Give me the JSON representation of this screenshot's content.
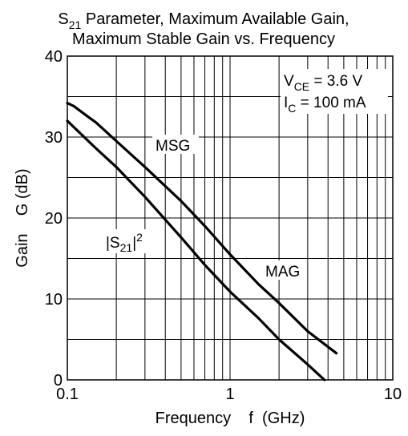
{
  "chart_data": {
    "type": "line",
    "title": {
      "line1_main": "S",
      "line1_sub": "21",
      "line1_rest": " Parameter, Maximum Available Gain,",
      "line2": "Maximum Stable Gain vs. Frequency"
    },
    "xlabel": "Frequency    f  (GHz)",
    "ylabel": "Gain    G (dB)",
    "x_scale": "log",
    "xlim": [
      0.1,
      10
    ],
    "ylim": [
      0,
      40
    ],
    "x_ticks": [
      0.1,
      1,
      10
    ],
    "x_tick_labels": [
      "0.1",
      "1",
      "10"
    ],
    "y_ticks": [
      0,
      10,
      20,
      30,
      40
    ],
    "y_tick_labels": [
      "0",
      "10",
      "20",
      "30",
      "40"
    ],
    "grid": true,
    "conditions": {
      "vce_main": "V",
      "vce_sub": "CE",
      "vce_rest": " = 3.6 V",
      "ic_main": "I",
      "ic_sub": "C",
      "ic_rest": " = 100 mA"
    },
    "annotations": {
      "msg": "MSG",
      "mag": "MAG",
      "s21_pre": "|S",
      "s21_sub": "21",
      "s21_post": "|",
      "s21_sup": "2"
    },
    "series": [
      {
        "name": "MSG/MAG",
        "x": [
          0.1,
          0.11,
          0.13,
          0.15,
          0.2,
          0.3,
          0.5,
          0.7,
          1.0,
          1.5,
          2.0,
          3.0,
          4.5
        ],
        "y": [
          34.2,
          33.8,
          32.7,
          31.8,
          29.5,
          26.3,
          22.1,
          19.0,
          15.5,
          11.8,
          9.5,
          6.0,
          3.3
        ]
      },
      {
        "name": "|S21|2",
        "x": [
          0.1,
          0.15,
          0.2,
          0.3,
          0.5,
          0.7,
          1.0,
          1.5,
          2.0,
          3.0,
          3.8
        ],
        "y": [
          32.0,
          28.6,
          26.3,
          22.6,
          17.6,
          14.2,
          10.9,
          7.6,
          5.0,
          1.9,
          0.0
        ]
      }
    ]
  }
}
